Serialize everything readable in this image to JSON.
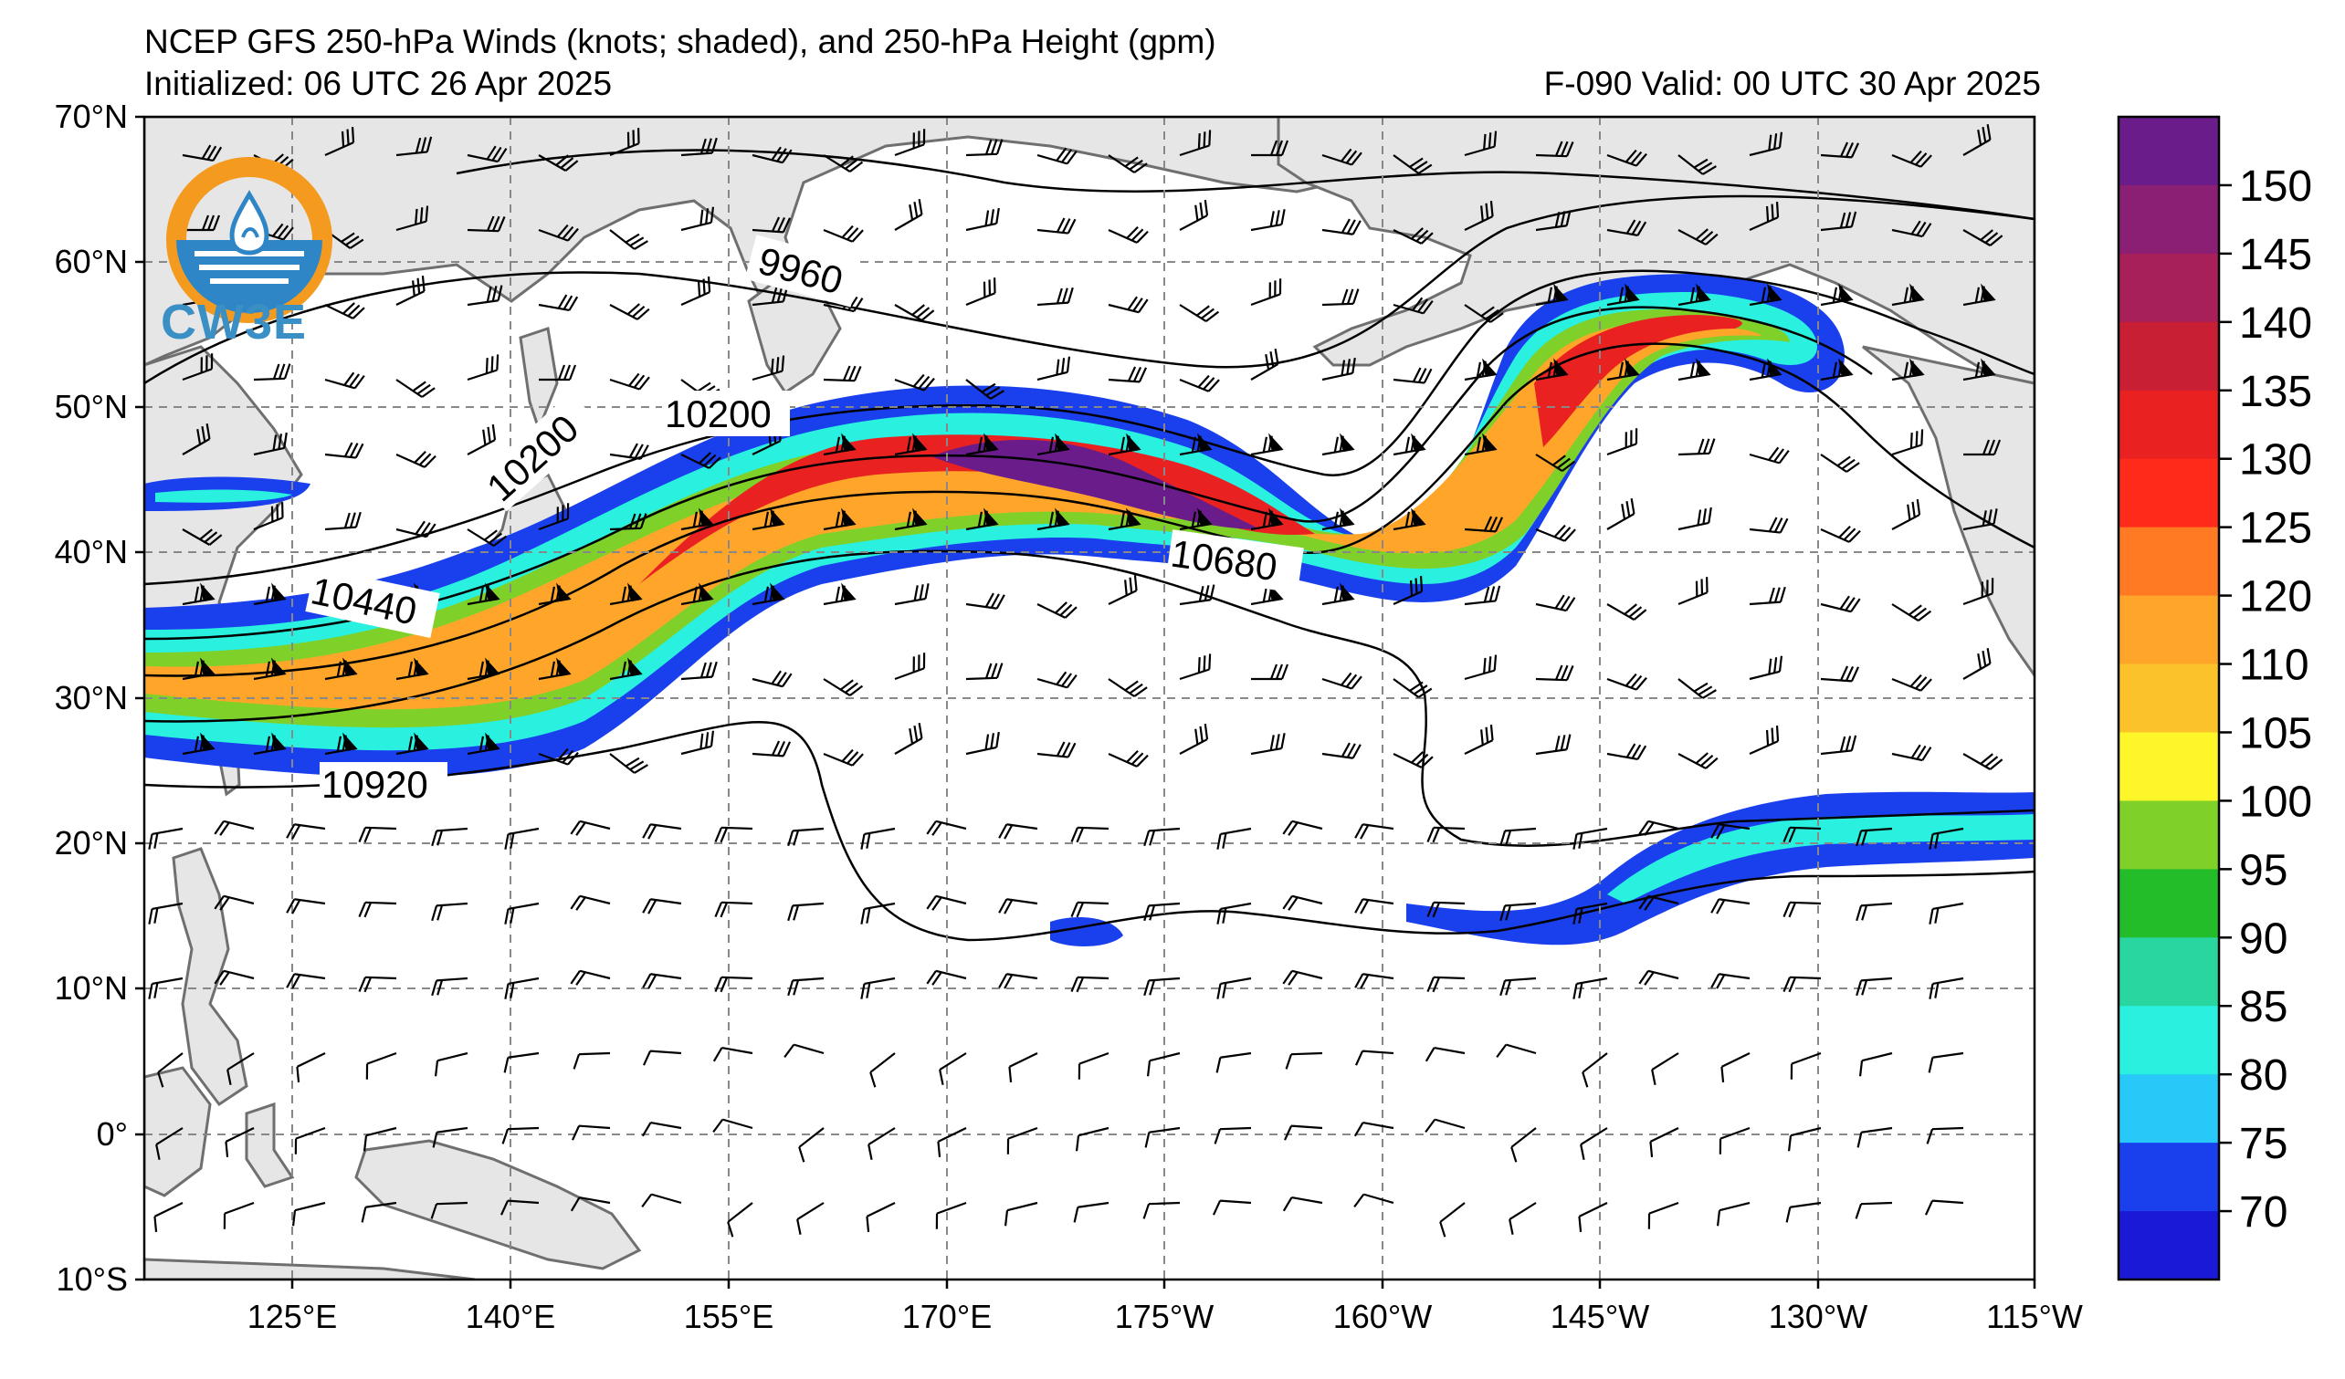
{
  "header": {
    "title": "NCEP GFS 250-hPa Winds (knots; shaded), and 250-hPa Height (gpm)",
    "initialized": "Initialized: 06 UTC 26 Apr 2025",
    "valid": "F-090  Valid: 00 UTC 30 Apr 2025"
  },
  "logo": {
    "text": "CW3E",
    "colors": {
      "ring": "#f39a1f",
      "wave": "#2f86c6"
    }
  },
  "map": {
    "lat_labels": [
      "70°N",
      "60°N",
      "50°N",
      "40°N",
      "30°N",
      "20°N",
      "10°N",
      "0°",
      "10°S"
    ],
    "lon_labels": [
      "125°E",
      "140°E",
      "155°E",
      "170°E",
      "175°W",
      "160°W",
      "145°W",
      "130°W",
      "115°W"
    ],
    "contour_labels": [
      "9960",
      "10200",
      "10200",
      "10440",
      "10680",
      "10920"
    ]
  },
  "colorbar": {
    "ticks": [
      "150",
      "145",
      "140",
      "135",
      "130",
      "125",
      "120",
      "110",
      "105",
      "100",
      "95",
      "90",
      "85",
      "80",
      "75",
      "70"
    ],
    "colors": [
      "#6a1c8a",
      "#8a1f74",
      "#a8205a",
      "#c81f35",
      "#ea2121",
      "#ff2a1a",
      "#ff7a22",
      "#ffa62a",
      "#fcc22a",
      "#fff62a",
      "#7fd12a",
      "#24bd2a",
      "#2ad6a0",
      "#2af0e0",
      "#28c8f8",
      "#1a40ee",
      "#1a1ad6"
    ]
  }
}
